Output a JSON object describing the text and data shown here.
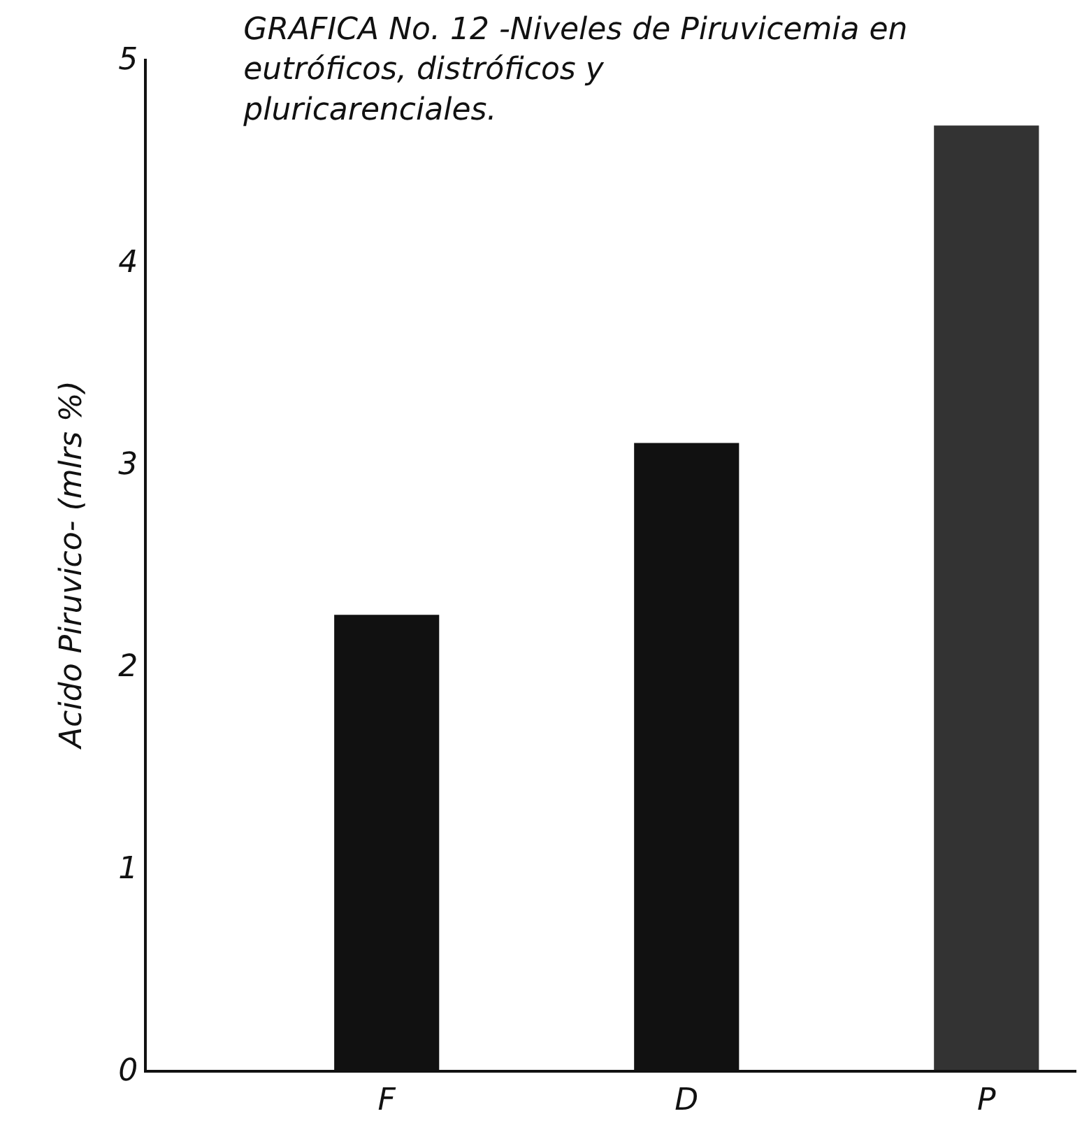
{
  "chart_data": {
    "type": "bar",
    "title": "GRAFICA No. 12 -Niveles de Piruvicemia en\neutróficos, distróficos y\npluricarenciales.",
    "ylabel": "Acido Piruvico- (mlrs %)",
    "categories": [
      "F",
      "D",
      "P"
    ],
    "values": [
      2.25,
      3.1,
      4.67
    ],
    "colors": [
      "#111111",
      "#111111",
      "#333333"
    ],
    "ylim": [
      0,
      5
    ],
    "yticks": [
      0,
      1,
      2,
      3,
      4,
      5
    ],
    "grid": false,
    "legend": false
  }
}
